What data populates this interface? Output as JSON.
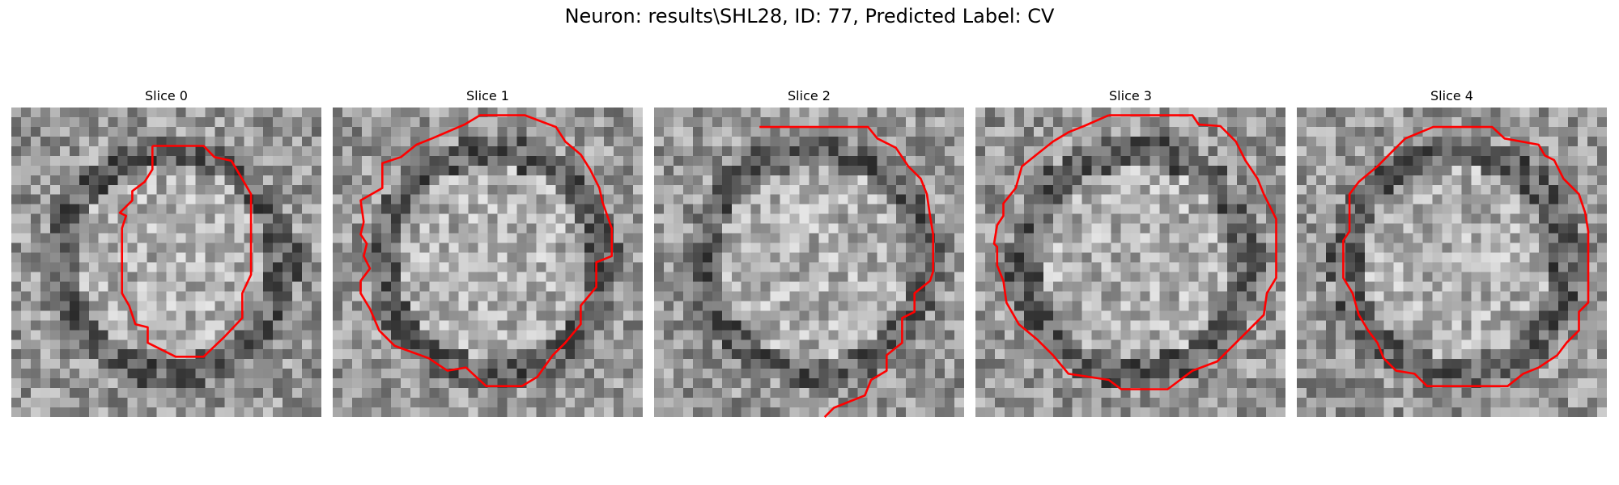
{
  "figure": {
    "title": "Neuron: results\\SHL28, ID: 77, Predicted Label: CV"
  },
  "style": {
    "contour_color": "#ff0000",
    "colormap": "gray",
    "background": "#ffffff"
  },
  "slices": [
    {
      "title": "Slice 0",
      "contour": [
        [
          0.455,
          0.124
        ],
        [
          0.62,
          0.124
        ],
        [
          0.655,
          0.16
        ],
        [
          0.71,
          0.172
        ],
        [
          0.75,
          0.24
        ],
        [
          0.773,
          0.28
        ],
        [
          0.773,
          0.54
        ],
        [
          0.745,
          0.6
        ],
        [
          0.745,
          0.68
        ],
        [
          0.688,
          0.74
        ],
        [
          0.62,
          0.805
        ],
        [
          0.53,
          0.805
        ],
        [
          0.44,
          0.76
        ],
        [
          0.44,
          0.71
        ],
        [
          0.4,
          0.7
        ],
        [
          0.38,
          0.64
        ],
        [
          0.357,
          0.6
        ],
        [
          0.357,
          0.455
        ],
        [
          0.357,
          0.39
        ],
        [
          0.37,
          0.35
        ],
        [
          0.35,
          0.34
        ],
        [
          0.39,
          0.3
        ],
        [
          0.39,
          0.27
        ],
        [
          0.43,
          0.24
        ],
        [
          0.455,
          0.2
        ]
      ]
    },
    {
      "title": "Slice 1",
      "contour": [
        [
          0.425,
          0.055
        ],
        [
          0.475,
          0.025
        ],
        [
          0.62,
          0.025
        ],
        [
          0.72,
          0.063
        ],
        [
          0.75,
          0.11
        ],
        [
          0.8,
          0.152
        ],
        [
          0.83,
          0.2
        ],
        [
          0.86,
          0.26
        ],
        [
          0.87,
          0.305
        ],
        [
          0.9,
          0.39
        ],
        [
          0.9,
          0.48
        ],
        [
          0.85,
          0.5
        ],
        [
          0.85,
          0.58
        ],
        [
          0.8,
          0.64
        ],
        [
          0.8,
          0.7
        ],
        [
          0.75,
          0.76
        ],
        [
          0.71,
          0.8
        ],
        [
          0.66,
          0.87
        ],
        [
          0.61,
          0.9
        ],
        [
          0.495,
          0.9
        ],
        [
          0.43,
          0.84
        ],
        [
          0.37,
          0.85
        ],
        [
          0.31,
          0.81
        ],
        [
          0.2,
          0.77
        ],
        [
          0.15,
          0.72
        ],
        [
          0.12,
          0.65
        ],
        [
          0.09,
          0.6
        ],
        [
          0.09,
          0.56
        ],
        [
          0.12,
          0.52
        ],
        [
          0.1,
          0.48
        ],
        [
          0.11,
          0.44
        ],
        [
          0.09,
          0.41
        ],
        [
          0.1,
          0.37
        ],
        [
          0.09,
          0.3
        ],
        [
          0.16,
          0.26
        ],
        [
          0.16,
          0.18
        ],
        [
          0.22,
          0.16
        ],
        [
          0.27,
          0.12
        ],
        [
          0.32,
          0.1
        ]
      ]
    },
    {
      "title": "Slice 2",
      "contour": [
        [
          0.34,
          0.063
        ],
        [
          0.69,
          0.063
        ],
        [
          0.72,
          0.1
        ],
        [
          0.78,
          0.13
        ],
        [
          0.82,
          0.19
        ],
        [
          0.86,
          0.23
        ],
        [
          0.88,
          0.28
        ],
        [
          0.89,
          0.35
        ],
        [
          0.9,
          0.41
        ],
        [
          0.9,
          0.53
        ],
        [
          0.89,
          0.56
        ],
        [
          0.84,
          0.6
        ],
        [
          0.84,
          0.66
        ],
        [
          0.8,
          0.68
        ],
        [
          0.8,
          0.76
        ],
        [
          0.75,
          0.8
        ],
        [
          0.75,
          0.85
        ],
        [
          0.7,
          0.88
        ],
        [
          0.68,
          0.93
        ],
        [
          0.58,
          0.97
        ],
        [
          0.55,
          1.0
        ]
      ]
    },
    {
      "title": "Slice 3",
      "contour": [
        [
          0.43,
          0.025
        ],
        [
          0.7,
          0.025
        ],
        [
          0.72,
          0.055
        ],
        [
          0.79,
          0.06
        ],
        [
          0.84,
          0.11
        ],
        [
          0.87,
          0.17
        ],
        [
          0.89,
          0.2
        ],
        [
          0.91,
          0.23
        ],
        [
          0.93,
          0.28
        ],
        [
          0.97,
          0.36
        ],
        [
          0.97,
          0.55
        ],
        [
          0.94,
          0.6
        ],
        [
          0.93,
          0.67
        ],
        [
          0.9,
          0.7
        ],
        [
          0.86,
          0.74
        ],
        [
          0.82,
          0.78
        ],
        [
          0.78,
          0.82
        ],
        [
          0.7,
          0.85
        ],
        [
          0.66,
          0.88
        ],
        [
          0.62,
          0.91
        ],
        [
          0.47,
          0.91
        ],
        [
          0.43,
          0.88
        ],
        [
          0.3,
          0.86
        ],
        [
          0.25,
          0.8
        ],
        [
          0.2,
          0.75
        ],
        [
          0.14,
          0.7
        ],
        [
          0.1,
          0.63
        ],
        [
          0.09,
          0.56
        ],
        [
          0.07,
          0.51
        ],
        [
          0.07,
          0.45
        ],
        [
          0.06,
          0.44
        ],
        [
          0.07,
          0.38
        ],
        [
          0.09,
          0.35
        ],
        [
          0.09,
          0.31
        ],
        [
          0.13,
          0.26
        ],
        [
          0.15,
          0.19
        ],
        [
          0.2,
          0.15
        ],
        [
          0.25,
          0.11
        ],
        [
          0.3,
          0.08
        ],
        [
          0.35,
          0.06
        ]
      ]
    },
    {
      "title": "Slice 4",
      "contour": [
        [
          0.35,
          0.1
        ],
        [
          0.44,
          0.063
        ],
        [
          0.63,
          0.063
        ],
        [
          0.67,
          0.1
        ],
        [
          0.78,
          0.12
        ],
        [
          0.8,
          0.155
        ],
        [
          0.83,
          0.17
        ],
        [
          0.86,
          0.23
        ],
        [
          0.91,
          0.28
        ],
        [
          0.93,
          0.34
        ],
        [
          0.94,
          0.4
        ],
        [
          0.94,
          0.63
        ],
        [
          0.91,
          0.66
        ],
        [
          0.91,
          0.72
        ],
        [
          0.87,
          0.76
        ],
        [
          0.84,
          0.8
        ],
        [
          0.78,
          0.84
        ],
        [
          0.73,
          0.86
        ],
        [
          0.68,
          0.9
        ],
        [
          0.42,
          0.9
        ],
        [
          0.38,
          0.86
        ],
        [
          0.32,
          0.85
        ],
        [
          0.28,
          0.81
        ],
        [
          0.26,
          0.76
        ],
        [
          0.23,
          0.72
        ],
        [
          0.2,
          0.67
        ],
        [
          0.18,
          0.6
        ],
        [
          0.15,
          0.55
        ],
        [
          0.15,
          0.43
        ],
        [
          0.17,
          0.4
        ],
        [
          0.17,
          0.28
        ],
        [
          0.2,
          0.24
        ],
        [
          0.26,
          0.19
        ],
        [
          0.31,
          0.14
        ]
      ]
    }
  ]
}
